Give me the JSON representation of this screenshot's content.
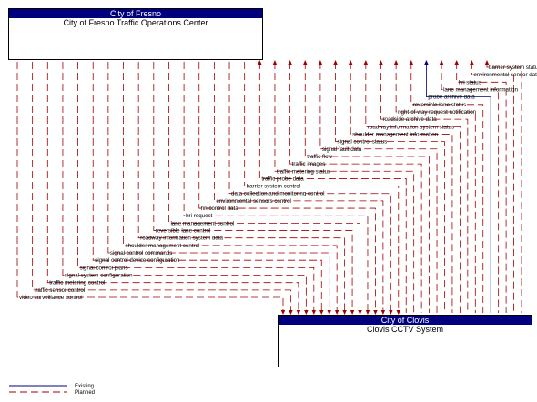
{
  "entities": {
    "top": {
      "header": "City of Fresno",
      "title": "City of Fresno Traffic Operations Center"
    },
    "bottom": {
      "header": "City of Clovis",
      "title": "Clovis CCTV System"
    }
  },
  "flows": [
    {
      "label": "barrier system status",
      "direction": "to_top",
      "status": "planned"
    },
    {
      "label": "environmental sensor data",
      "direction": "to_top",
      "status": "planned"
    },
    {
      "label": "hri status",
      "direction": "to_top",
      "status": "planned"
    },
    {
      "label": "lane management information",
      "direction": "to_top",
      "status": "planned"
    },
    {
      "label": "probe archive data",
      "direction": "to_top",
      "status": "existing"
    },
    {
      "label": "reversible lane status",
      "direction": "to_top",
      "status": "planned"
    },
    {
      "label": "right-of-way request notification",
      "direction": "to_top",
      "status": "planned"
    },
    {
      "label": "roadside archive data",
      "direction": "to_top",
      "status": "planned"
    },
    {
      "label": "roadway information system status",
      "direction": "to_top",
      "status": "planned"
    },
    {
      "label": "shoulder management information",
      "direction": "to_top",
      "status": "planned"
    },
    {
      "label": "signal control status",
      "direction": "to_top",
      "status": "planned"
    },
    {
      "label": "signal fault data",
      "direction": "to_top",
      "status": "planned"
    },
    {
      "label": "traffic flow",
      "direction": "to_top",
      "status": "planned"
    },
    {
      "label": "traffic images",
      "direction": "to_top",
      "status": "planned"
    },
    {
      "label": "traffic metering status",
      "direction": "to_top",
      "status": "planned"
    },
    {
      "label": "traffic probe data",
      "direction": "to_top",
      "status": "planned"
    },
    {
      "label": "barrier system control",
      "direction": "to_bottom",
      "status": "planned"
    },
    {
      "label": "data collection and monitoring control",
      "direction": "to_bottom",
      "status": "planned"
    },
    {
      "label": "environmental sensors control",
      "direction": "to_bottom",
      "status": "planned"
    },
    {
      "label": "hri control data",
      "direction": "to_bottom",
      "status": "planned"
    },
    {
      "label": "hri request",
      "direction": "to_bottom",
      "status": "planned"
    },
    {
      "label": "lane management control",
      "direction": "to_bottom",
      "status": "planned"
    },
    {
      "label": "reversible lane control",
      "direction": "to_bottom",
      "status": "planned"
    },
    {
      "label": "roadway information system data",
      "direction": "to_bottom",
      "status": "planned"
    },
    {
      "label": "shoulder management control",
      "direction": "to_bottom",
      "status": "planned"
    },
    {
      "label": "signal control commands",
      "direction": "to_bottom",
      "status": "planned"
    },
    {
      "label": "signal control device configuration",
      "direction": "to_bottom",
      "status": "planned"
    },
    {
      "label": "signal control plans",
      "direction": "to_bottom",
      "status": "planned"
    },
    {
      "label": "signal system configuration",
      "direction": "to_bottom",
      "status": "planned"
    },
    {
      "label": "traffic metering control",
      "direction": "to_bottom",
      "status": "planned"
    },
    {
      "label": "traffic sensor control",
      "direction": "to_bottom",
      "status": "planned"
    },
    {
      "label": "video surveillance control",
      "direction": "to_bottom",
      "status": "planned"
    }
  ],
  "legend": {
    "existing": "Existing",
    "planned": "Planned"
  },
  "colors": {
    "entity_header": "#00007f",
    "planned_line": "#a00000",
    "existing_line": "#00007f",
    "legend_text": "#00007f"
  }
}
